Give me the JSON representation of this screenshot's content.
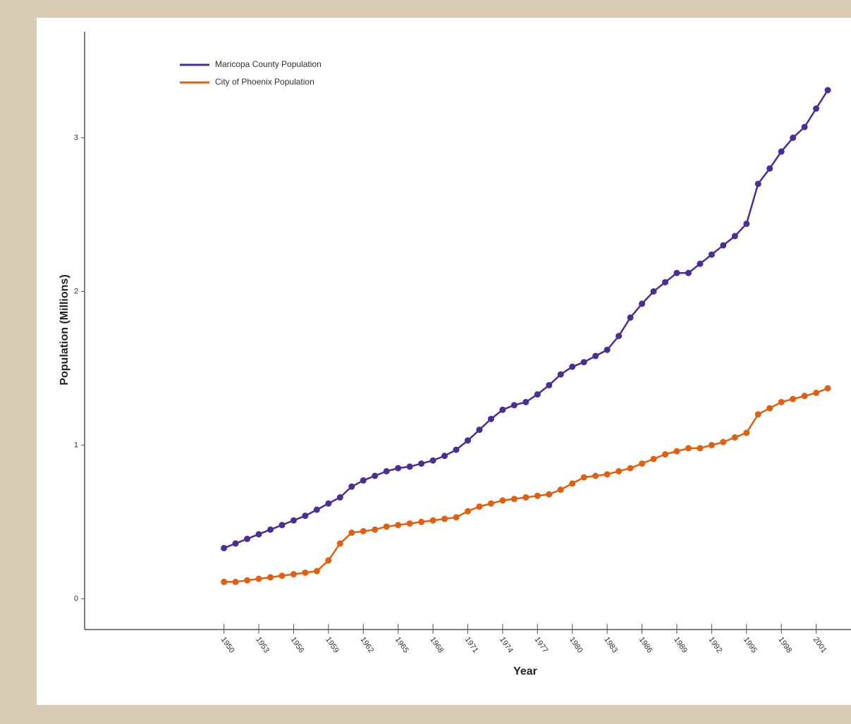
{
  "chart_data": {
    "type": "line",
    "x_label": "Year",
    "y_label": "Population (Millions)",
    "x": [
      1950,
      1951,
      1952,
      1953,
      1954,
      1955,
      1956,
      1957,
      1958,
      1959,
      1960,
      1961,
      1962,
      1963,
      1964,
      1965,
      1966,
      1967,
      1968,
      1969,
      1970,
      1971,
      1972,
      1973,
      1974,
      1975,
      1976,
      1977,
      1978,
      1979,
      1980,
      1981,
      1982,
      1983,
      1984,
      1985,
      1986,
      1987,
      1988,
      1989,
      1990,
      1991,
      1992,
      1993,
      1994,
      1995,
      1996,
      1997,
      1998,
      1999,
      2000,
      2001,
      2002
    ],
    "series": [
      {
        "name": "Maricopa County Population",
        "color": "#4b2d96",
        "values": [
          0.33,
          0.36,
          0.39,
          0.42,
          0.45,
          0.48,
          0.51,
          0.54,
          0.58,
          0.62,
          0.66,
          0.73,
          0.77,
          0.8,
          0.83,
          0.85,
          0.86,
          0.88,
          0.9,
          0.93,
          0.97,
          1.03,
          1.1,
          1.17,
          1.23,
          1.26,
          1.28,
          1.33,
          1.39,
          1.46,
          1.51,
          1.54,
          1.58,
          1.62,
          1.71,
          1.83,
          1.92,
          2.0,
          2.06,
          2.12,
          2.12,
          2.18,
          2.24,
          2.3,
          2.36,
          2.44,
          2.7,
          2.8,
          2.91,
          3.0,
          3.07,
          3.19,
          3.31
        ]
      },
      {
        "name": "City of Phoenix Population",
        "color": "#e0600f",
        "values": [
          0.11,
          0.11,
          0.12,
          0.13,
          0.14,
          0.15,
          0.16,
          0.17,
          0.18,
          0.25,
          0.36,
          0.43,
          0.44,
          0.45,
          0.47,
          0.48,
          0.49,
          0.5,
          0.51,
          0.52,
          0.53,
          0.57,
          0.6,
          0.62,
          0.64,
          0.65,
          0.66,
          0.67,
          0.68,
          0.71,
          0.75,
          0.79,
          0.8,
          0.81,
          0.83,
          0.85,
          0.88,
          0.91,
          0.94,
          0.96,
          0.98,
          0.98,
          1.0,
          1.02,
          1.05,
          1.08,
          1.2,
          1.24,
          1.28,
          1.3,
          1.32,
          1.34,
          1.37
        ]
      }
    ],
    "xlim": [
      1938,
      2004
    ],
    "xticks": [
      1950,
      1953,
      1956,
      1959,
      1962,
      1965,
      1968,
      1971,
      1974,
      1977,
      1980,
      1983,
      1986,
      1989,
      1992,
      1995,
      1998,
      2001
    ],
    "ylim": [
      -0.2,
      3.69
    ],
    "yticks": [
      0,
      1,
      2,
      3
    ],
    "legend": "upper left",
    "grid": false
  }
}
